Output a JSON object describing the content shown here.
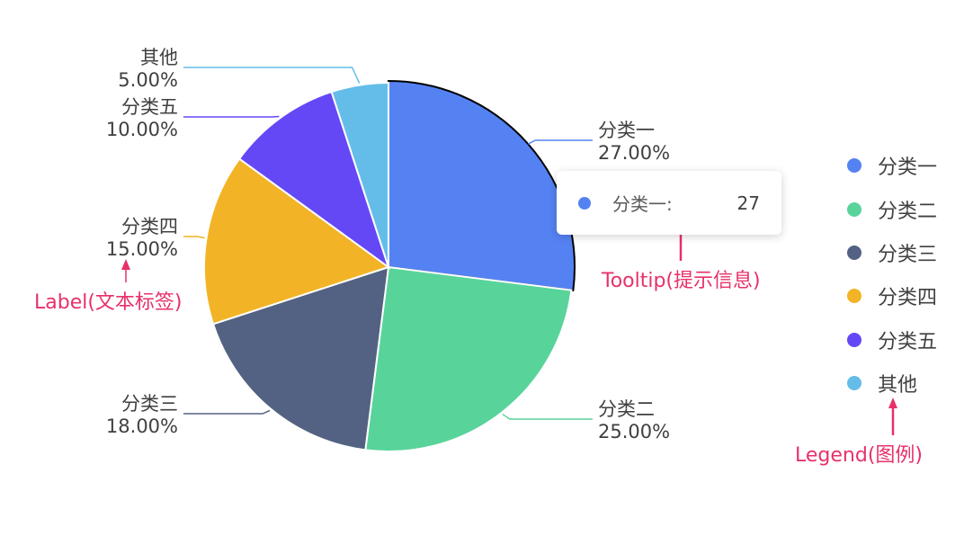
{
  "chart_data": {
    "type": "pie",
    "slices": [
      {
        "label": "分类一",
        "value": 27,
        "percent": "27.00%",
        "color": "#5582f3",
        "highlighted": true
      },
      {
        "label": "分类二",
        "value": 25,
        "percent": "25.00%",
        "color": "#58d49a"
      },
      {
        "label": "分类三",
        "value": 18,
        "percent": "18.00%",
        "color": "#536282"
      },
      {
        "label": "分类四",
        "value": 15,
        "percent": "15.00%",
        "color": "#f2b426"
      },
      {
        "label": "分类五",
        "value": 10,
        "percent": "10.00%",
        "color": "#6448f6"
      },
      {
        "label": "其他",
        "value": 5,
        "percent": "5.00%",
        "color": "#64bde8"
      }
    ],
    "legend_position": "right"
  },
  "tooltip": {
    "name": "分类一:",
    "value": "27",
    "color": "#5582f3"
  },
  "annotations": {
    "tooltip": "Tooltip(提示信息)",
    "label": "Label(文本标签)",
    "legend": "Legend(图例)",
    "color": "#e7316a"
  }
}
